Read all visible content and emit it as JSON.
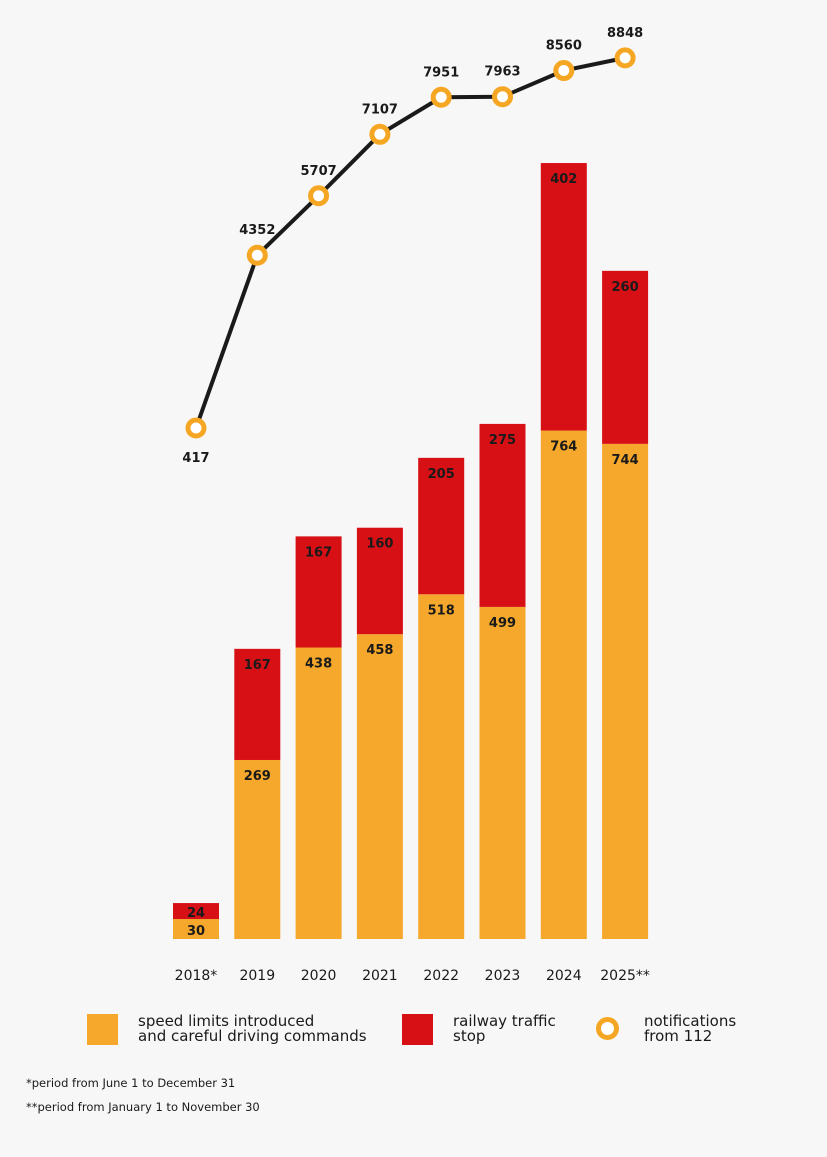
{
  "chart_data": {
    "type": "bar",
    "stacked": true,
    "categories": [
      "2018*",
      "2019",
      "2020",
      "2021",
      "2022",
      "2023",
      "2024",
      "2025**"
    ],
    "series": [
      {
        "name": "speed limits introduced and careful driving commands",
        "type": "bar",
        "color": "#f5a82b",
        "values": [
          30,
          269,
          438,
          458,
          518,
          499,
          764,
          744
        ]
      },
      {
        "name": "railway traffic stop",
        "type": "bar",
        "color": "#d71016",
        "values": [
          24,
          167,
          167,
          160,
          205,
          275,
          402,
          260
        ]
      },
      {
        "name": "notifications from 112",
        "type": "line",
        "color": "#1a1a1a",
        "marker_color": "#f5a623",
        "values": [
          417,
          4352,
          5707,
          7107,
          7951,
          7963,
          8560,
          8848
        ]
      }
    ],
    "grid": false,
    "legend": "bottom"
  },
  "legend": {
    "items": [
      {
        "label_line1": "speed limits introduced",
        "label_line2": "and careful driving commands"
      },
      {
        "label_line1": "railway traffic",
        "label_line2": "stop"
      },
      {
        "label_line1": "notifications",
        "label_line2": "from 112"
      }
    ]
  },
  "footnotes": [
    "*period from June 1 to December 31",
    "**period from January 1 to November 30"
  ]
}
